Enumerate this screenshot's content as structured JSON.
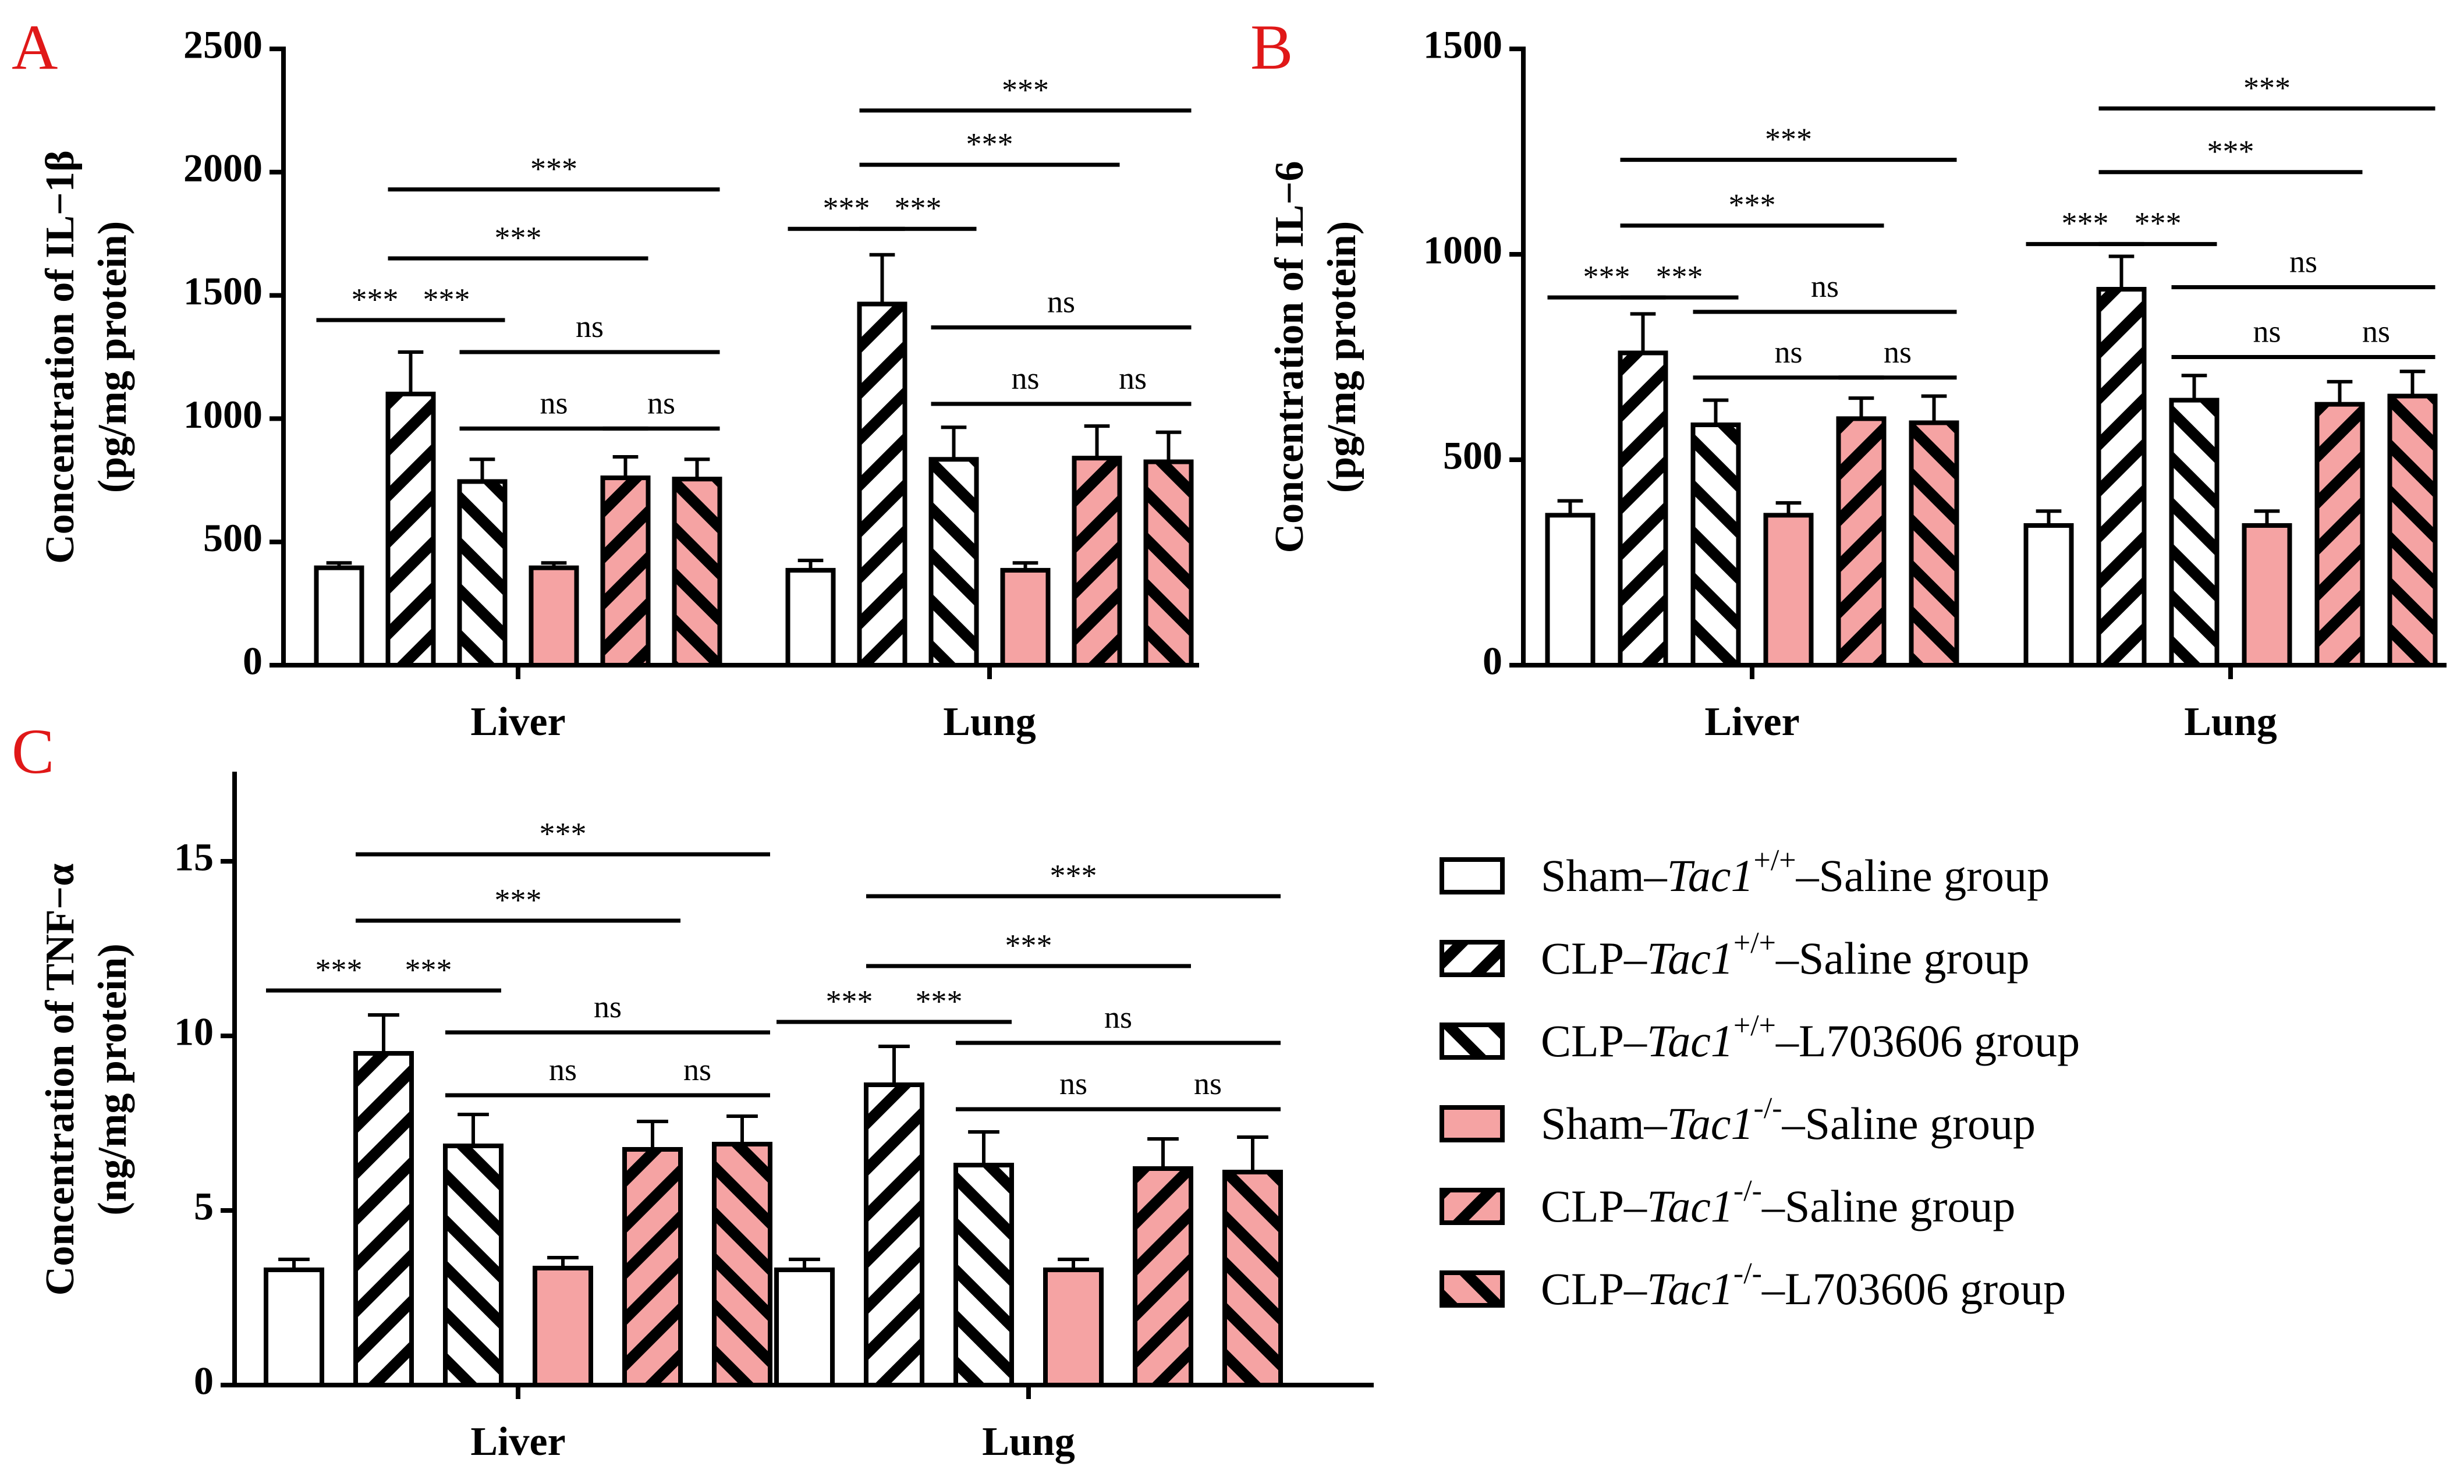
{
  "legend": {
    "items": [
      {
        "pre": "Sham–",
        "gene": "Tac1",
        "sup": "+/+",
        "post": "–Saline group",
        "fill": "#ffffff",
        "pattern": "none"
      },
      {
        "pre": "CLP–",
        "gene": "Tac1",
        "sup": "+/+",
        "post": "–Saline group",
        "fill": "#ffffff",
        "pattern": "fwd"
      },
      {
        "pre": "CLP–",
        "gene": "Tac1",
        "sup": "+/+",
        "post": "–L703606 group",
        "fill": "#ffffff",
        "pattern": "back"
      },
      {
        "pre": "Sham–",
        "gene": "Tac1",
        "sup": "-/-",
        "post": "–Saline group",
        "fill": "#f5a3a3",
        "pattern": "none"
      },
      {
        "pre": "CLP–",
        "gene": "Tac1",
        "sup": "-/-",
        "post": "–Saline group",
        "fill": "#f5a3a3",
        "pattern": "fwd"
      },
      {
        "pre": "CLP–",
        "gene": "Tac1",
        "sup": "-/-",
        "post": "–L703606 group",
        "fill": "#f5a3a3",
        "pattern": "back"
      }
    ]
  },
  "chart_data": [
    {
      "panel": "A",
      "type": "bar",
      "ylabel_line1": "Concentration of IL−1β",
      "ylabel_line2": "(pg/mg protein)",
      "ylim": [
        0,
        2500
      ],
      "yticks": [
        0,
        500,
        1000,
        1500,
        2000,
        2500
      ],
      "categories": [
        "Liver",
        "Lung"
      ],
      "series": [
        {
          "values": [
            395,
            385
          ],
          "errors": [
            20,
            40
          ]
        },
        {
          "values": [
            1100,
            1465
          ],
          "errors": [
            170,
            200
          ]
        },
        {
          "values": [
            745,
            835
          ],
          "errors": [
            90,
            130
          ]
        },
        {
          "values": [
            395,
            385
          ],
          "errors": [
            20,
            30
          ]
        },
        {
          "values": [
            760,
            840
          ],
          "errors": [
            85,
            130
          ]
        },
        {
          "values": [
            755,
            825
          ],
          "errors": [
            80,
            120
          ]
        }
      ],
      "significance": [
        {
          "cat": 0,
          "from": 0,
          "to": 1,
          "label": "***",
          "y": 1400
        },
        {
          "cat": 0,
          "from": 1,
          "to": 2,
          "label": "***",
          "y": 1400
        },
        {
          "cat": 0,
          "from": 1,
          "to": 4,
          "label": "***",
          "y": 1650
        },
        {
          "cat": 0,
          "from": 1,
          "to": 5,
          "label": "***",
          "y": 1930
        },
        {
          "cat": 0,
          "from": 2,
          "to": 4,
          "label": "ns",
          "y": 960
        },
        {
          "cat": 0,
          "from": 4,
          "to": 5,
          "label": "ns",
          "y": 960
        },
        {
          "cat": 0,
          "from": 2,
          "to": 5,
          "label": "ns",
          "y": 1270
        },
        {
          "cat": 1,
          "from": 0,
          "to": 1,
          "label": "***",
          "y": 1770
        },
        {
          "cat": 1,
          "from": 1,
          "to": 2,
          "label": "***",
          "y": 1770
        },
        {
          "cat": 1,
          "from": 1,
          "to": 4,
          "label": "***",
          "y": 2030
        },
        {
          "cat": 1,
          "from": 1,
          "to": 5,
          "label": "***",
          "y": 2250
        },
        {
          "cat": 1,
          "from": 2,
          "to": 4,
          "label": "ns",
          "y": 1060
        },
        {
          "cat": 1,
          "from": 4,
          "to": 5,
          "label": "ns",
          "y": 1060
        },
        {
          "cat": 1,
          "from": 2,
          "to": 5,
          "label": "ns",
          "y": 1370
        }
      ]
    },
    {
      "panel": "B",
      "type": "bar",
      "ylabel_line1": "Concentration of IL−6",
      "ylabel_line2": "(pg/mg protein)",
      "ylim": [
        0,
        1500
      ],
      "yticks": [
        0,
        500,
        1000,
        1500
      ],
      "categories": [
        "Liver",
        "Lung"
      ],
      "series": [
        {
          "values": [
            365,
            340
          ],
          "errors": [
            35,
            35
          ]
        },
        {
          "values": [
            760,
            915
          ],
          "errors": [
            95,
            80
          ]
        },
        {
          "values": [
            585,
            645
          ],
          "errors": [
            60,
            60
          ]
        },
        {
          "values": [
            365,
            340
          ],
          "errors": [
            30,
            35
          ]
        },
        {
          "values": [
            600,
            635
          ],
          "errors": [
            50,
            55
          ]
        },
        {
          "values": [
            590,
            655
          ],
          "errors": [
            65,
            60
          ]
        }
      ],
      "significance": [
        {
          "cat": 0,
          "from": 0,
          "to": 1,
          "label": "***",
          "y": 895
        },
        {
          "cat": 0,
          "from": 1,
          "to": 2,
          "label": "***",
          "y": 895
        },
        {
          "cat": 0,
          "from": 1,
          "to": 4,
          "label": "***",
          "y": 1070
        },
        {
          "cat": 0,
          "from": 1,
          "to": 5,
          "label": "***",
          "y": 1230
        },
        {
          "cat": 0,
          "from": 2,
          "to": 4,
          "label": "ns",
          "y": 700
        },
        {
          "cat": 0,
          "from": 4,
          "to": 5,
          "label": "ns",
          "y": 700
        },
        {
          "cat": 0,
          "from": 2,
          "to": 5,
          "label": "ns",
          "y": 860
        },
        {
          "cat": 1,
          "from": 0,
          "to": 1,
          "label": "***",
          "y": 1025
        },
        {
          "cat": 1,
          "from": 1,
          "to": 2,
          "label": "***",
          "y": 1025
        },
        {
          "cat": 1,
          "from": 1,
          "to": 4,
          "label": "***",
          "y": 1200
        },
        {
          "cat": 1,
          "from": 1,
          "to": 5,
          "label": "***",
          "y": 1355
        },
        {
          "cat": 1,
          "from": 2,
          "to": 4,
          "label": "ns",
          "y": 750
        },
        {
          "cat": 1,
          "from": 4,
          "to": 5,
          "label": "ns",
          "y": 750
        },
        {
          "cat": 1,
          "from": 2,
          "to": 5,
          "label": "ns",
          "y": 920
        }
      ]
    },
    {
      "panel": "C",
      "type": "bar",
      "ylabel_line1": "Concentration of TNF−α",
      "ylabel_line2": "(ng/mg protein)",
      "ylim": [
        0,
        17.5
      ],
      "yticks": [
        0,
        5,
        10,
        15
      ],
      "categories": [
        "Liver",
        "Lung"
      ],
      "series": [
        {
          "values": [
            3.3,
            3.3
          ],
          "errors": [
            0.3,
            0.3
          ]
        },
        {
          "values": [
            9.5,
            8.6
          ],
          "errors": [
            1.1,
            1.1
          ]
        },
        {
          "values": [
            6.85,
            6.3
          ],
          "errors": [
            0.9,
            0.95
          ]
        },
        {
          "values": [
            3.35,
            3.3
          ],
          "errors": [
            0.3,
            0.3
          ]
        },
        {
          "values": [
            6.75,
            6.2
          ],
          "errors": [
            0.8,
            0.85
          ]
        },
        {
          "values": [
            6.9,
            6.1
          ],
          "errors": [
            0.8,
            1.0
          ]
        }
      ],
      "significance": [
        {
          "cat": 0,
          "from": 0,
          "to": 1,
          "label": "***",
          "y": 11.3
        },
        {
          "cat": 0,
          "from": 1,
          "to": 2,
          "label": "***",
          "y": 11.3
        },
        {
          "cat": 0,
          "from": 1,
          "to": 4,
          "label": "***",
          "y": 13.3
        },
        {
          "cat": 0,
          "from": 1,
          "to": 5,
          "label": "***",
          "y": 15.2
        },
        {
          "cat": 0,
          "from": 2,
          "to": 4,
          "label": "ns",
          "y": 8.3
        },
        {
          "cat": 0,
          "from": 4,
          "to": 5,
          "label": "ns",
          "y": 8.3
        },
        {
          "cat": 0,
          "from": 2,
          "to": 5,
          "label": "ns",
          "y": 10.1
        },
        {
          "cat": 1,
          "from": 0,
          "to": 1,
          "label": "***",
          "y": 10.4
        },
        {
          "cat": 1,
          "from": 1,
          "to": 2,
          "label": "***",
          "y": 10.4
        },
        {
          "cat": 1,
          "from": 1,
          "to": 4,
          "label": "***",
          "y": 12.0
        },
        {
          "cat": 1,
          "from": 1,
          "to": 5,
          "label": "***",
          "y": 14.0
        },
        {
          "cat": 1,
          "from": 2,
          "to": 4,
          "label": "ns",
          "y": 7.9
        },
        {
          "cat": 1,
          "from": 4,
          "to": 5,
          "label": "ns",
          "y": 7.9
        },
        {
          "cat": 1,
          "from": 2,
          "to": 5,
          "label": "ns",
          "y": 9.8
        }
      ]
    }
  ]
}
